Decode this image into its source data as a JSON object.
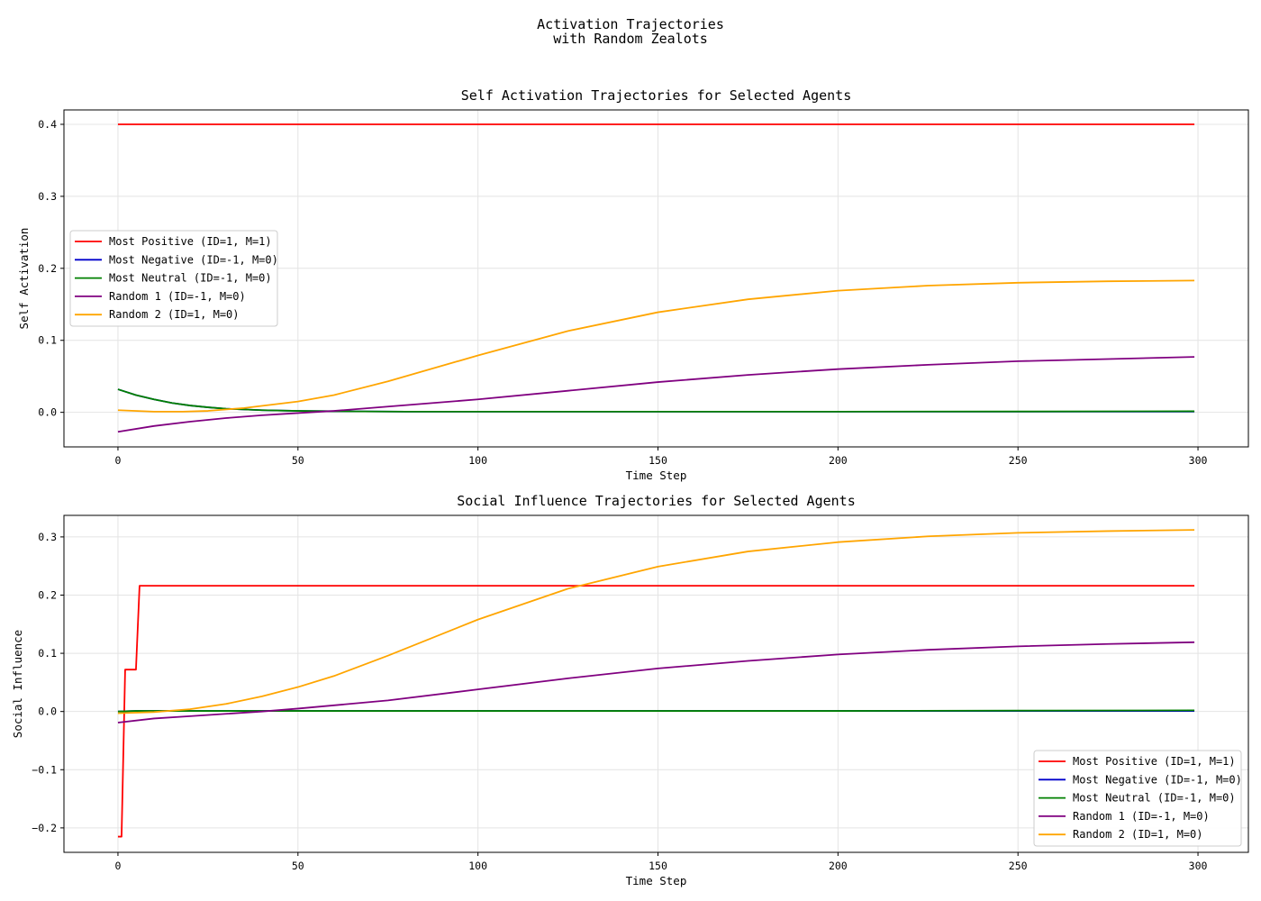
{
  "figure": {
    "suptitle_line1": "Activation Trajectories",
    "suptitle_line2": "with Random Zealots"
  },
  "chart_data": [
    {
      "type": "line",
      "title": "Self Activation Trajectories for Selected Agents",
      "xlabel": "Time Step",
      "ylabel": "Self Activation",
      "xlim": [
        -15,
        314
      ],
      "ylim": [
        -0.048,
        0.42
      ],
      "xticks": [
        0,
        50,
        100,
        150,
        200,
        250,
        300
      ],
      "yticks": [
        0.0,
        0.1,
        0.2,
        0.3,
        0.4
      ],
      "ytick_labels": [
        "0.0",
        "0.1",
        "0.2",
        "0.3",
        "0.4"
      ],
      "grid": true,
      "legend_position": "center-left",
      "series": [
        {
          "name": "Most Positive (ID=1, M=1)",
          "color": "#ff0000",
          "x": [
            0,
            299
          ],
          "y": [
            0.4,
            0.4
          ]
        },
        {
          "name": "Most Negative (ID=-1, M=0)",
          "color": "#0000cc",
          "x": [
            0,
            5,
            10,
            15,
            20,
            25,
            30,
            40,
            50,
            60,
            80,
            100,
            150,
            200,
            250,
            299
          ],
          "y": [
            0.032,
            0.024,
            0.018,
            0.013,
            0.0095,
            0.007,
            0.005,
            0.003,
            0.002,
            0.0015,
            0.001,
            0.001,
            0.001,
            0.001,
            0.001,
            0.001
          ]
        },
        {
          "name": "Most Neutral (ID=-1, M=0)",
          "color": "#008000",
          "x": [
            0,
            5,
            10,
            15,
            20,
            25,
            30,
            40,
            50,
            60,
            80,
            100,
            150,
            200,
            250,
            299
          ],
          "y": [
            0.032,
            0.024,
            0.018,
            0.013,
            0.0095,
            0.007,
            0.005,
            0.003,
            0.002,
            0.0015,
            0.001,
            0.001,
            0.001,
            0.001,
            0.0012,
            0.0015
          ]
        },
        {
          "name": "Random 1 (ID=-1, M=0)",
          "color": "#800080",
          "x": [
            0,
            10,
            20,
            30,
            40,
            50,
            60,
            75,
            100,
            125,
            150,
            175,
            200,
            225,
            250,
            275,
            299
          ],
          "y": [
            -0.027,
            -0.019,
            -0.013,
            -0.008,
            -0.004,
            -0.001,
            0.002,
            0.008,
            0.018,
            0.03,
            0.042,
            0.052,
            0.06,
            0.066,
            0.071,
            0.074,
            0.077
          ]
        },
        {
          "name": "Random 2 (ID=1, M=0)",
          "color": "#ffa500",
          "x": [
            0,
            10,
            18,
            25,
            35,
            50,
            60,
            75,
            100,
            125,
            150,
            175,
            200,
            225,
            250,
            275,
            299
          ],
          "y": [
            0.003,
            0.001,
            0.001,
            0.002,
            0.006,
            0.015,
            0.024,
            0.043,
            0.079,
            0.113,
            0.139,
            0.157,
            0.169,
            0.176,
            0.18,
            0.182,
            0.183
          ]
        }
      ]
    },
    {
      "type": "line",
      "title": "Social Influence Trajectories for Selected Agents",
      "xlabel": "Time Step",
      "ylabel": "Social Influence",
      "xlim": [
        -15,
        314
      ],
      "ylim": [
        -0.242,
        0.337
      ],
      "xticks": [
        0,
        50,
        100,
        150,
        200,
        250,
        300
      ],
      "yticks": [
        -0.2,
        -0.1,
        0.0,
        0.1,
        0.2,
        0.3
      ],
      "ytick_labels": [
        "−0.2",
        "−0.1",
        "0.0",
        "0.1",
        "0.2",
        "0.3"
      ],
      "grid": true,
      "legend_position": "lower-right",
      "series": [
        {
          "name": "Most Positive (ID=1, M=1)",
          "color": "#ff0000",
          "x": [
            0,
            1,
            2,
            5,
            6,
            299
          ],
          "y": [
            -0.215,
            -0.215,
            0.072,
            0.072,
            0.216,
            0.216
          ]
        },
        {
          "name": "Most Negative (ID=-1, M=0)",
          "color": "#0000cc",
          "x": [
            0,
            5,
            20,
            50,
            100,
            150,
            200,
            250,
            299
          ],
          "y": [
            0.0,
            0.001,
            0.001,
            0.001,
            0.001,
            0.001,
            0.001,
            0.001,
            0.001
          ]
        },
        {
          "name": "Most Neutral (ID=-1, M=0)",
          "color": "#008000",
          "x": [
            0,
            5,
            20,
            50,
            100,
            150,
            200,
            250,
            299
          ],
          "y": [
            0.0,
            0.001,
            0.001,
            0.001,
            0.001,
            0.001,
            0.001,
            0.0015,
            0.002
          ]
        },
        {
          "name": "Random 1 (ID=-1, M=0)",
          "color": "#800080",
          "x": [
            0,
            10,
            20,
            30,
            40,
            50,
            75,
            100,
            125,
            150,
            175,
            200,
            225,
            250,
            275,
            299
          ],
          "y": [
            -0.019,
            -0.012,
            -0.008,
            -0.004,
            0.0,
            0.005,
            0.019,
            0.038,
            0.057,
            0.074,
            0.087,
            0.098,
            0.106,
            0.112,
            0.116,
            0.119
          ]
        },
        {
          "name": "Random 2 (ID=1, M=0)",
          "color": "#ffa500",
          "x": [
            0,
            10,
            20,
            30,
            40,
            50,
            60,
            75,
            100,
            125,
            150,
            175,
            200,
            225,
            250,
            275,
            299
          ],
          "y": [
            -0.003,
            -0.001,
            0.004,
            0.013,
            0.026,
            0.042,
            0.061,
            0.096,
            0.158,
            0.211,
            0.249,
            0.275,
            0.291,
            0.301,
            0.307,
            0.31,
            0.312
          ]
        }
      ]
    }
  ]
}
